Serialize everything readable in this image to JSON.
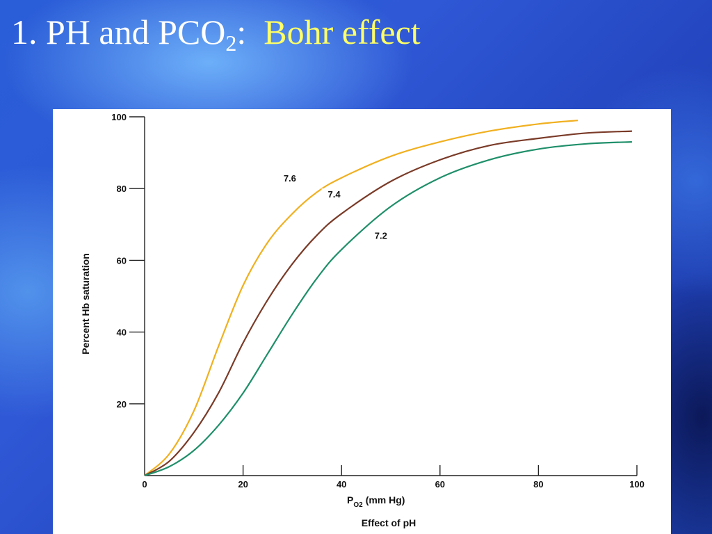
{
  "slide": {
    "title_prefix": "1. PH and PCO",
    "title_sub": "2",
    "title_colon": ":",
    "title_accent": "Bohr effect"
  },
  "chart_data": {
    "type": "line",
    "title": "",
    "caption": "Effect of pH",
    "xlabel_main": "P",
    "xlabel_sub": "O2",
    "xlabel_units": "(mm Hg)",
    "ylabel": "Percent Hb saturation",
    "xlim": [
      0,
      100
    ],
    "ylim": [
      0,
      100
    ],
    "x_ticks": [
      "0",
      "20",
      "40",
      "60",
      "80",
      "100"
    ],
    "y_ticks": [
      "20",
      "40",
      "60",
      "80",
      "100"
    ],
    "grid": false,
    "series": [
      {
        "name": "7.6",
        "color": "#f0b020",
        "x": [
          0,
          5,
          10,
          15,
          20,
          25,
          30,
          35,
          40,
          50,
          60,
          70,
          80,
          88
        ],
        "y": [
          0,
          6,
          18,
          36,
          53,
          65,
          73,
          79,
          83,
          89,
          93,
          96,
          98,
          99
        ]
      },
      {
        "name": "7.4",
        "color": "#7a3b28",
        "x": [
          0,
          5,
          10,
          15,
          20,
          25,
          30,
          35,
          40,
          50,
          60,
          70,
          80,
          90,
          99
        ],
        "y": [
          0,
          4,
          12,
          23,
          37,
          49,
          59,
          67,
          73,
          82,
          88,
          92,
          94,
          95.5,
          96
        ]
      },
      {
        "name": "7.2",
        "color": "#1f8f6a",
        "x": [
          0,
          5,
          10,
          15,
          20,
          25,
          30,
          35,
          40,
          50,
          60,
          70,
          80,
          90,
          99
        ],
        "y": [
          0,
          2.5,
          7,
          14,
          23,
          34,
          45,
          55,
          63,
          75,
          83,
          88,
          91,
          92.5,
          93
        ]
      }
    ]
  }
}
